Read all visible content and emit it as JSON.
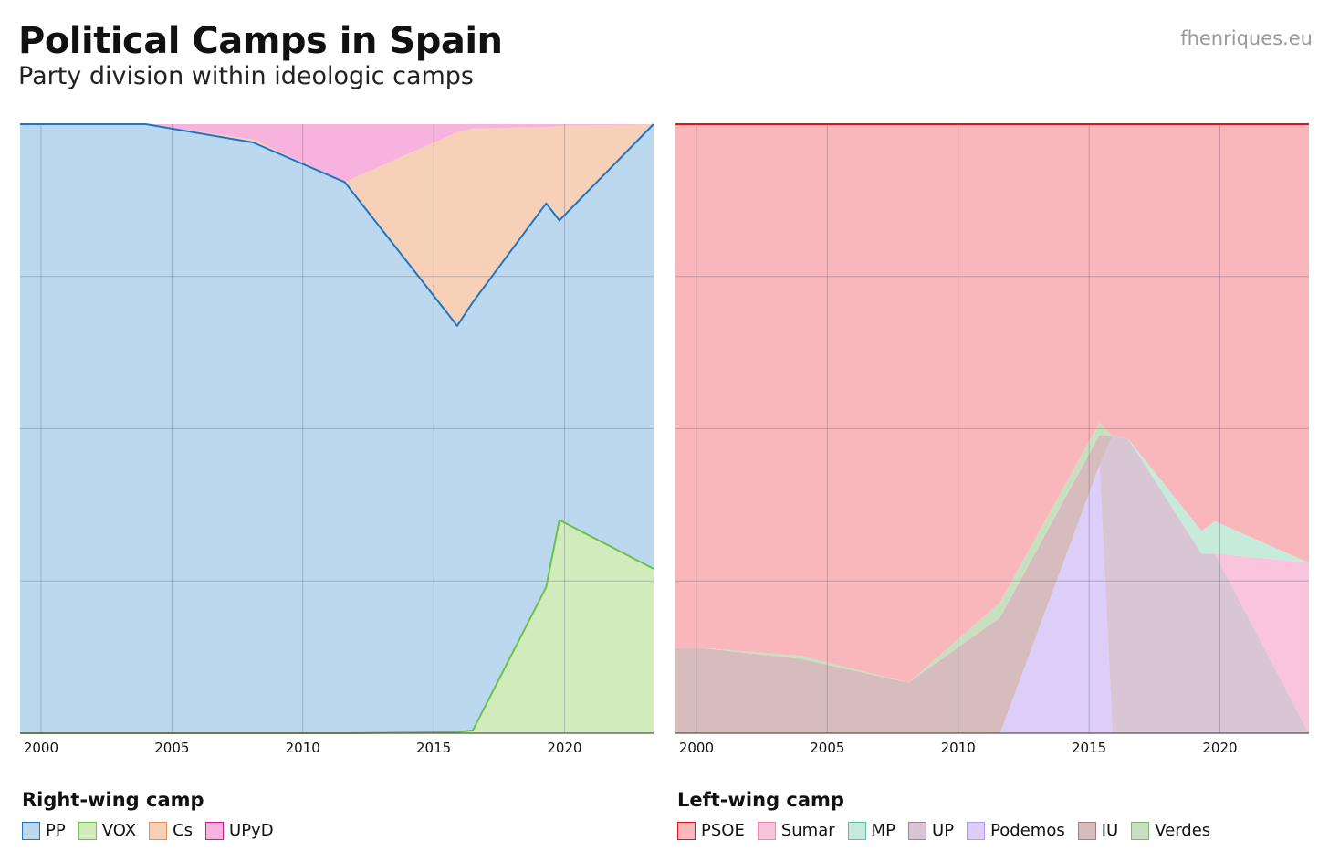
{
  "header": {
    "title": "Political Camps in Spain",
    "subtitle": "Party division within ideologic camps",
    "source": "fhenriques.eu"
  },
  "legends": {
    "right_title": "Right-wing camp",
    "left_title": "Left-wing camp"
  },
  "chart_data": [
    {
      "type": "area",
      "stacked": "100%",
      "title": "Right-wing camp",
      "x_ticks": [
        2000,
        2005,
        2010,
        2015,
        2020
      ],
      "xlim": [
        1999.2,
        2023.4
      ],
      "ylim": [
        0,
        100
      ],
      "grid": true,
      "x": [
        1999.2,
        2000.2,
        2004.0,
        2008.1,
        2011.6,
        2015.9,
        2016.5,
        2019.3,
        2019.8,
        2023.4
      ],
      "series": [
        {
          "name": "VOX",
          "fill": "#d1ebbd",
          "stroke": "#6bc14a",
          "values": [
            0,
            0,
            0,
            0,
            0,
            0.2,
            0.5,
            24,
            35,
            27
          ]
        },
        {
          "name": "PP",
          "fill": "#bcd8ee",
          "stroke": "#1f75c4",
          "values": [
            100,
            100,
            100,
            97,
            90.5,
            66.7,
            70.3,
            63,
            49.2,
            73
          ]
        },
        {
          "name": "Cs",
          "fill": "#f7d1b7",
          "stroke": "#e38f58",
          "values": [
            0,
            0,
            0,
            0.5,
            0,
            31.8,
            28.5,
            12.5,
            15.5,
            0
          ]
        },
        {
          "name": "UPyD",
          "fill": "#f7b3dd",
          "stroke": "#d8158f",
          "values": [
            0,
            0,
            0,
            2.5,
            9.5,
            1.3,
            0.7,
            0.5,
            0.3,
            0
          ]
        }
      ]
    },
    {
      "type": "area",
      "stacked": "100%",
      "title": "Left-wing camp",
      "x_ticks": [
        2000,
        2005,
        2010,
        2015,
        2020
      ],
      "xlim": [
        1999.2,
        2023.4
      ],
      "ylim": [
        0,
        100
      ],
      "grid": true,
      "x": [
        1999.2,
        2000.2,
        2004.0,
        2008.1,
        2011.6,
        2015.4,
        2015.9,
        2016.5,
        2019.3,
        2019.8,
        2023.4
      ],
      "series": [
        {
          "name": "Podemos",
          "fill": "#dccdf9",
          "stroke": "#b29bf0",
          "values": [
            0,
            0,
            0,
            0,
            0,
            44,
            0,
            0,
            0,
            0,
            0
          ]
        },
        {
          "name": "UP",
          "fill": "#d8c6d4",
          "stroke": "#a3809c",
          "values": [
            0,
            0,
            0,
            0,
            0,
            0,
            48.8,
            48.3,
            29.5,
            29.5,
            0
          ]
        },
        {
          "name": "IU",
          "fill": "#d6bcbc",
          "stroke": "#ad7b7b",
          "values": [
            14,
            14,
            12.2,
            8.3,
            19,
            5,
            0,
            0,
            0,
            0,
            0
          ]
        },
        {
          "name": "Verdes",
          "fill": "#c8e0c0",
          "stroke": "#7cb46b",
          "values": [
            0,
            0,
            0.5,
            0,
            2.5,
            2,
            0,
            0,
            0,
            0,
            0
          ]
        },
        {
          "name": "Sumar",
          "fill": "#f9c4dc",
          "stroke": "#ee85b5",
          "values": [
            0,
            0,
            0,
            0,
            0,
            0,
            0,
            0,
            0,
            0,
            28
          ]
        },
        {
          "name": "MP",
          "fill": "#c7ebda",
          "stroke": "#59c49a",
          "values": [
            0,
            0,
            0,
            0,
            0,
            0,
            0,
            0,
            3.7,
            5.3,
            0
          ]
        },
        {
          "name": "PSOE",
          "fill": "#f9b7bc",
          "stroke": "#d9141d",
          "values": [
            86,
            86,
            87.3,
            91.7,
            78.5,
            49,
            51.2,
            51.7,
            66.8,
            65.2,
            72
          ]
        }
      ]
    }
  ]
}
